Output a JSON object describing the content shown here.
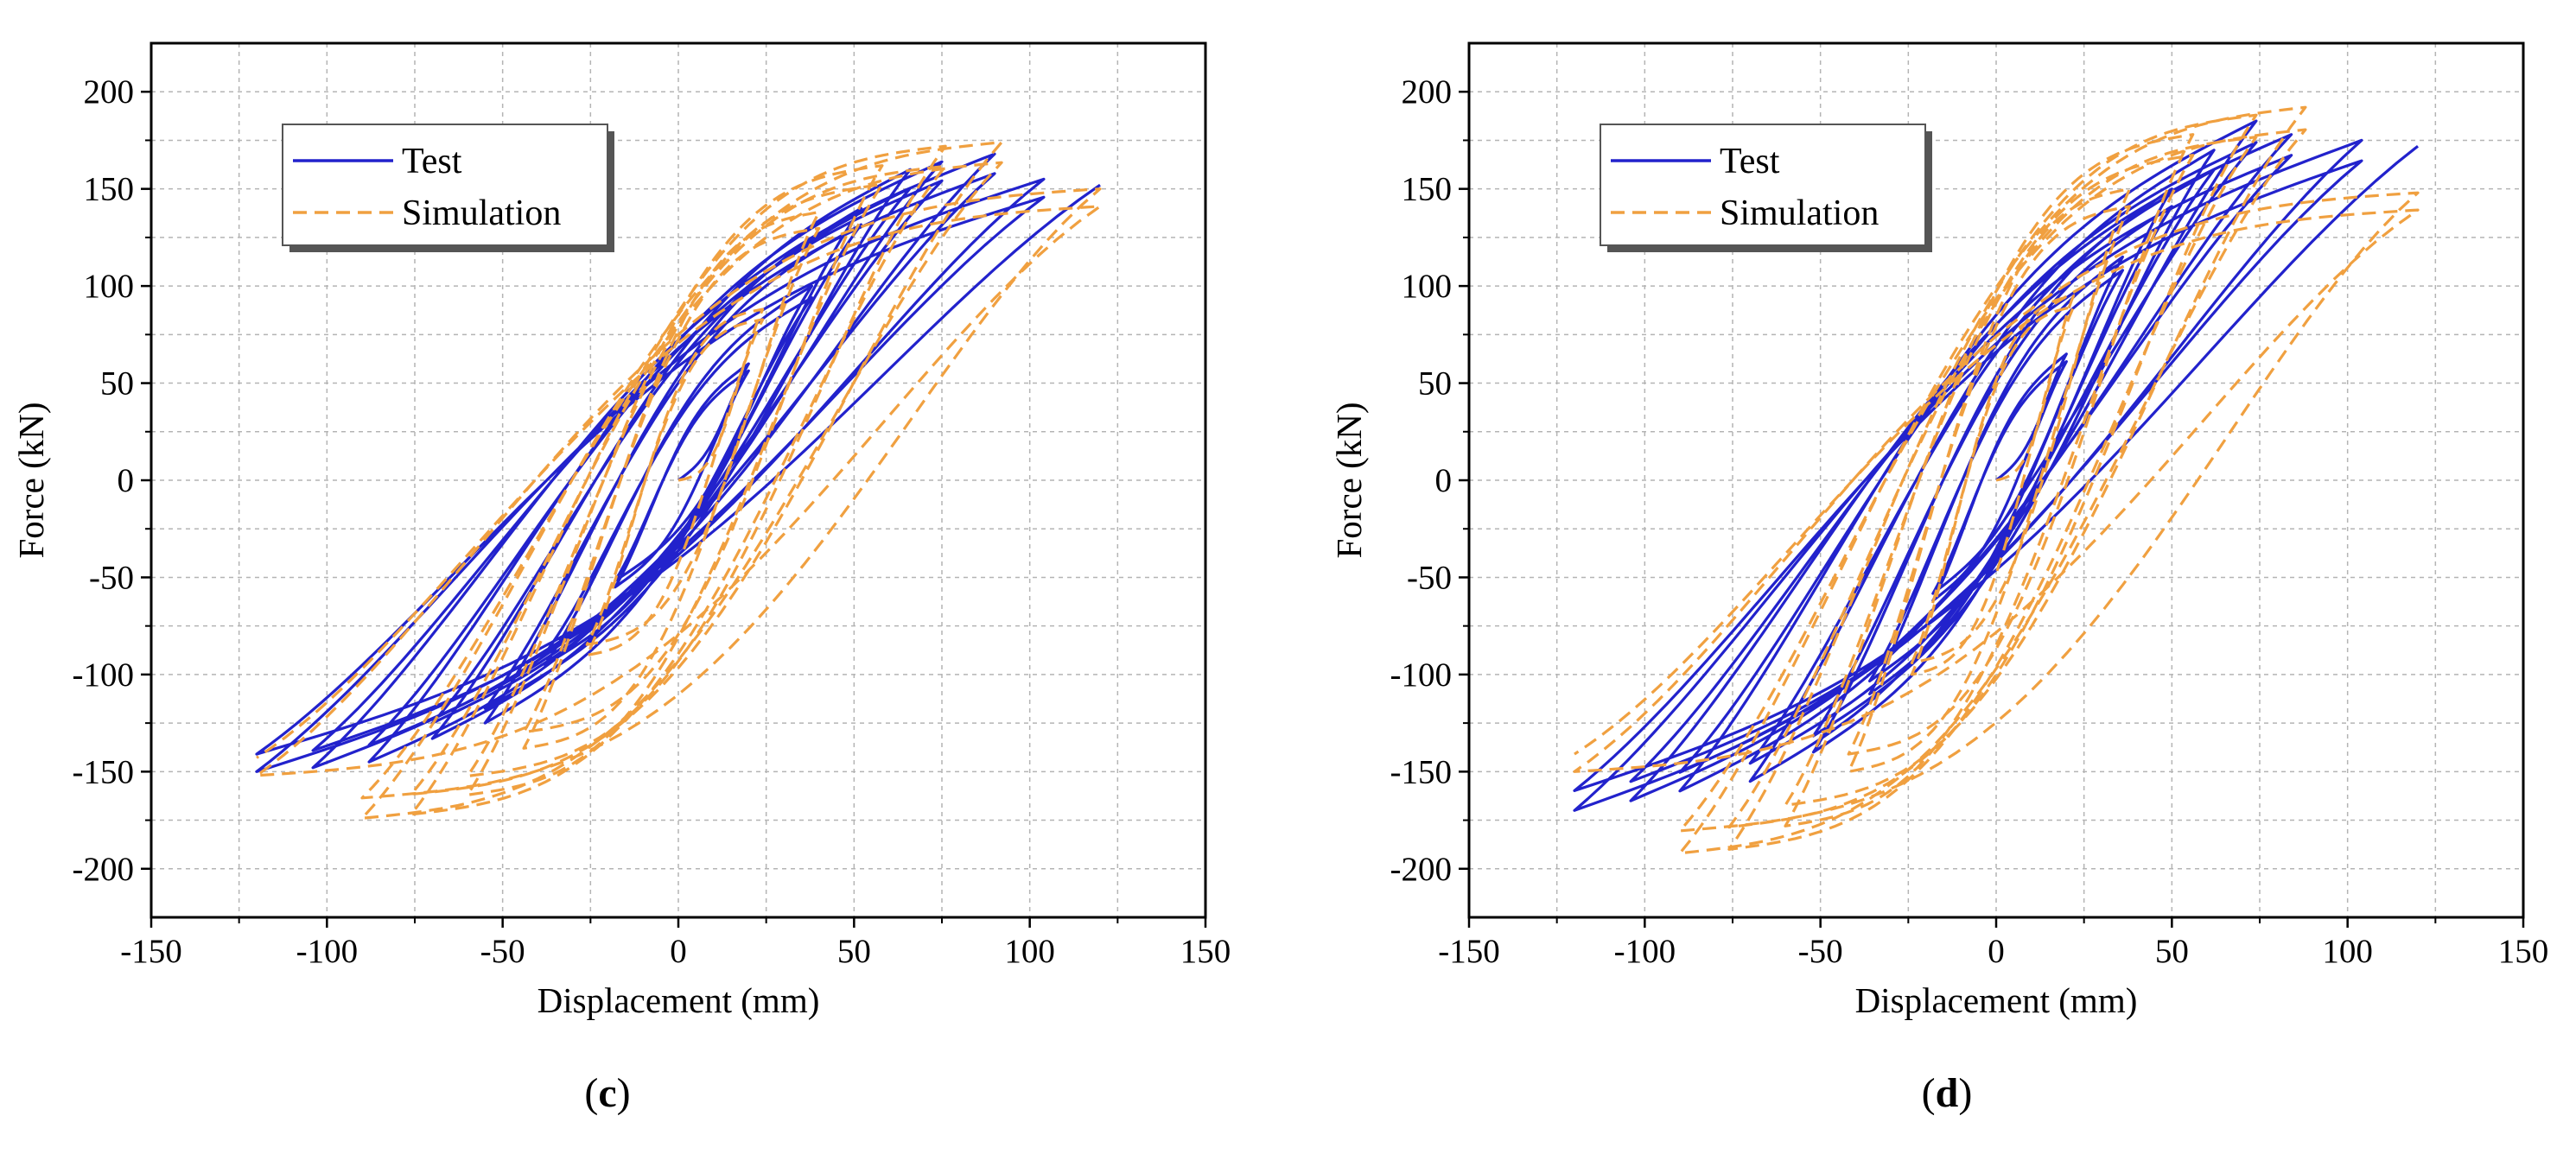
{
  "colors": {
    "test": "#2222cc",
    "simulation": "#f0a040",
    "grid": "#b4b4b4",
    "axis": "#000000"
  },
  "captions": [
    {
      "open": "(",
      "letter": "c",
      "close": ")"
    },
    {
      "open": "(",
      "letter": "d",
      "close": ")"
    }
  ],
  "chart_data": [
    {
      "type": "line",
      "panel": "c",
      "xlabel": "Displacement (mm)",
      "ylabel": "Force (kN)",
      "xlim": [
        -150,
        150
      ],
      "ylim": [
        -225,
        225
      ],
      "xticks": [
        -150,
        -100,
        -50,
        0,
        50,
        100,
        150
      ],
      "yticks": [
        -200,
        -150,
        -100,
        -50,
        0,
        50,
        100,
        150,
        200
      ],
      "grid": true,
      "legend": {
        "placement": "top-left",
        "entries": [
          "Test",
          "Simulation"
        ]
      },
      "series": [
        {
          "name": "Test",
          "style": "solid",
          "peaks_pos": [
            [
              20,
              60
            ],
            [
              38,
              100
            ],
            [
              52,
              140
            ],
            [
              66,
              160
            ],
            [
              75,
              164
            ],
            [
              90,
              168
            ],
            [
              104,
              155
            ],
            [
              120,
              152
            ]
          ],
          "peaks_neg": [
            [
              -18,
              -55
            ],
            [
              -38,
              -95
            ],
            [
              -55,
              -125
            ],
            [
              -70,
              -133
            ],
            [
              -88,
              -145
            ],
            [
              -104,
              -148
            ],
            [
              -120,
              -150
            ]
          ]
        },
        {
          "name": "Simulation",
          "style": "dashed",
          "peaks_pos": [
            [
              24,
              88
            ],
            [
              40,
              138
            ],
            [
              58,
              162
            ],
            [
              76,
              172
            ],
            [
              92,
              174
            ],
            [
              120,
              150
            ]
          ],
          "peaks_neg": [
            [
              -26,
              -90
            ],
            [
              -44,
              -138
            ],
            [
              -60,
              -162
            ],
            [
              -76,
              -172
            ],
            [
              -90,
              -174
            ],
            [
              -120,
              -152
            ]
          ]
        }
      ]
    },
    {
      "type": "line",
      "panel": "d",
      "xlabel": "Displacement (mm)",
      "ylabel": "Force (kN)",
      "xlim": [
        -150,
        150
      ],
      "ylim": [
        -225,
        225
      ],
      "xticks": [
        -150,
        -100,
        -50,
        0,
        50,
        100,
        150
      ],
      "yticks": [
        -200,
        -150,
        -100,
        -50,
        0,
        50,
        100,
        150,
        200
      ],
      "grid": true,
      "legend": {
        "placement": "top-left",
        "entries": [
          "Test",
          "Simulation"
        ]
      },
      "series": [
        {
          "name": "Test",
          "style": "solid",
          "peaks_pos": [
            [
              20,
              65
            ],
            [
              36,
              115
            ],
            [
              50,
              150
            ],
            [
              62,
              170
            ],
            [
              74,
              185
            ],
            [
              84,
              178
            ],
            [
              104,
              175
            ],
            [
              120,
              172
            ]
          ],
          "peaks_neg": [
            [
              -18,
              -62
            ],
            [
              -36,
              -110
            ],
            [
              -52,
              -140
            ],
            [
              -70,
              -155
            ],
            [
              -90,
              -160
            ],
            [
              -104,
              -165
            ],
            [
              -120,
              -170
            ]
          ]
        },
        {
          "name": "Simulation",
          "style": "dashed",
          "peaks_pos": [
            [
              22,
              95
            ],
            [
              38,
              150
            ],
            [
              56,
              178
            ],
            [
              74,
              188
            ],
            [
              88,
              192
            ],
            [
              120,
              148
            ]
          ],
          "peaks_neg": [
            [
              -24,
              -100
            ],
            [
              -42,
              -150
            ],
            [
              -60,
              -178
            ],
            [
              -76,
              -190
            ],
            [
              -90,
              -192
            ],
            [
              -120,
              -150
            ]
          ]
        }
      ]
    }
  ]
}
